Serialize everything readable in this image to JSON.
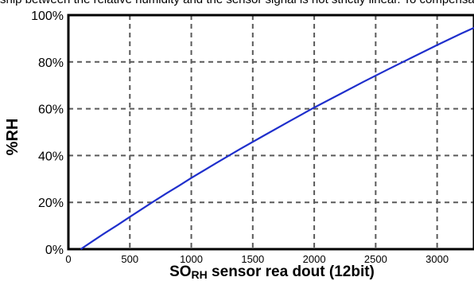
{
  "caption_fragment": "ship between the relative humidity and the sensor signal is not strictly linear. To compensate this non-linearity, the following conversion is used",
  "chart_data": {
    "type": "line",
    "title": "",
    "xlabel_main": "SO",
    "xlabel_sub": "RH",
    "xlabel_rest": " sensor rea dout (12bit)",
    "ylabel": "%RH",
    "xlim": [
      0,
      3300
    ],
    "ylim": [
      0,
      100
    ],
    "xticks": [
      0,
      500,
      1000,
      1500,
      2000,
      2500,
      3000
    ],
    "xtick_labels": [
      "0",
      "500",
      "1000",
      "1500",
      "2000",
      "2500",
      "3000"
    ],
    "yticks": [
      0,
      20,
      40,
      60,
      80,
      100
    ],
    "ytick_labels": [
      "0%",
      "20%",
      "40%",
      "60%",
      "80%",
      "100%"
    ],
    "grid": true,
    "series": [
      {
        "color": "#1f2fcc",
        "x": [
          100,
          200,
          300,
          400,
          500,
          600,
          700,
          800,
          900,
          1000,
          1200,
          1400,
          1600,
          1800,
          2000,
          2200,
          2400,
          2600,
          2800,
          3000,
          3200,
          3300
        ],
        "y": [
          0,
          3.5,
          7.0,
          10.3,
          13.8,
          17.2,
          20.6,
          23.9,
          27.1,
          30.4,
          36.7,
          42.9,
          48.8,
          54.7,
          60.5,
          66.0,
          71.5,
          76.8,
          82.0,
          87.2,
          92.2,
          94.6
        ]
      }
    ]
  }
}
